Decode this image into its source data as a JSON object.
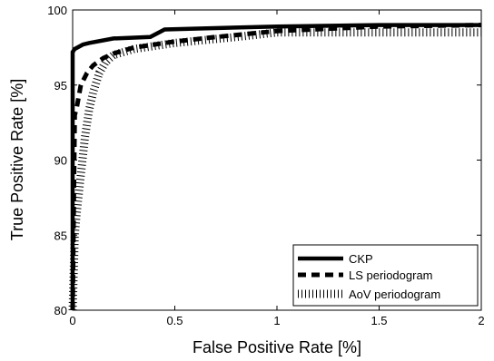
{
  "chart_data": {
    "type": "line",
    "title": "",
    "xlabel": "False Positive Rate [%]",
    "ylabel": "True Positive Rate [%]",
    "xlim": [
      0,
      2
    ],
    "ylim": [
      80,
      100
    ],
    "xticks": [
      0,
      0.5,
      1,
      1.5,
      2
    ],
    "yticks": [
      80,
      85,
      90,
      95,
      100
    ],
    "xtick_labels": [
      "0",
      "0.5",
      "1",
      "1.5",
      "2"
    ],
    "ytick_labels": [
      "80",
      "85",
      "90",
      "95",
      "100"
    ],
    "grid": false,
    "legend_position": "bottom-right",
    "series": [
      {
        "name": "CKP",
        "style": "solid",
        "color": "#000000",
        "x": [
          0,
          0,
          0.01,
          0.05,
          0.08,
          0.2,
          0.38,
          0.45,
          1.0,
          1.5,
          2.0
        ],
        "y": [
          80,
          97.2,
          97.4,
          97.7,
          97.8,
          98.1,
          98.2,
          98.7,
          98.9,
          99.0,
          99.0
        ]
      },
      {
        "name": "LS periodogram",
        "style": "dashed",
        "color": "#000000",
        "x": [
          0,
          0.01,
          0.02,
          0.04,
          0.07,
          0.1,
          0.15,
          0.2,
          0.3,
          0.5,
          0.7,
          1.0,
          1.5,
          2.0
        ],
        "y": [
          80,
          93.0,
          93.5,
          95.0,
          95.8,
          96.3,
          96.8,
          97.1,
          97.5,
          97.9,
          98.2,
          98.6,
          98.9,
          99.0
        ]
      },
      {
        "name": "AoV periodogram",
        "style": "dotted",
        "color": "#000000",
        "x": [
          0,
          0.01,
          0.02,
          0.04,
          0.06,
          0.08,
          0.1,
          0.13,
          0.16,
          0.2,
          0.3,
          0.5,
          0.8,
          1.0,
          1.5,
          2.0
        ],
        "y": [
          80,
          85.0,
          86.5,
          89.0,
          91.5,
          93.3,
          94.5,
          95.8,
          96.5,
          97.0,
          97.4,
          97.8,
          98.2,
          98.5,
          98.5,
          98.5
        ]
      }
    ]
  }
}
